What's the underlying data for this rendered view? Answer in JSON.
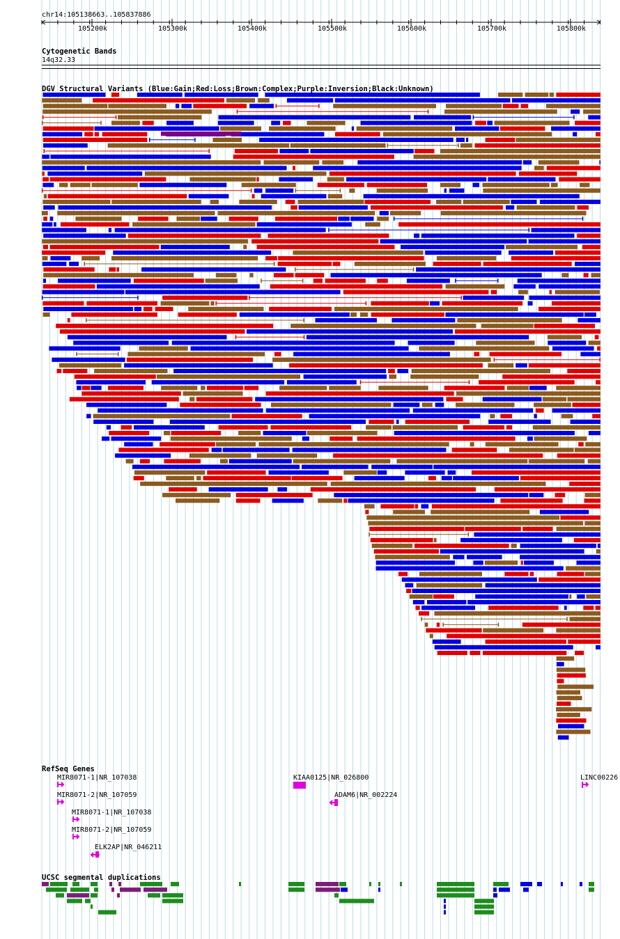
{
  "ruler": {
    "position_label": "chr14:105138663..105837886",
    "ticks": [
      "105200k",
      "105300k",
      "105400k",
      "105500k",
      "105600k",
      "105700k",
      "105800k"
    ]
  },
  "cyto": {
    "title": "Cytogenetic Bands",
    "band": "14q32.33"
  },
  "dgv": {
    "title": "DGV Structural Variants (Blue:Gain;Red:Loss;Brown:Complex;Purple:Inversion;Black:Unknown)",
    "colors": {
      "gain": "#0000e0",
      "loss": "#e00000",
      "complex": "#8b5a1e",
      "inversion": "#800080",
      "unknown": "#000000"
    }
  },
  "refseq": {
    "title": "RefSeq Genes",
    "color": "#e000e0",
    "genes": [
      {
        "label": "MIR8071-1|NR_107038"
      },
      {
        "label": "MIR8071-2|NR_107059"
      },
      {
        "label": "MIR8071-1|NR_107038"
      },
      {
        "label": "MIR8071-2|NR_107059"
      },
      {
        "label": "ELK2AP|NR_046211"
      },
      {
        "label": "KIAA0125|NR_026800"
      },
      {
        "label": "ADAM6|NR_002224"
      },
      {
        "label": "LINC00226"
      }
    ]
  },
  "segdup": {
    "title": "UCSC segmental duplications",
    "colors": {
      "green": "#1e8c1e",
      "purple": "#7a1e7a",
      "blue": "#0000e0"
    }
  }
}
